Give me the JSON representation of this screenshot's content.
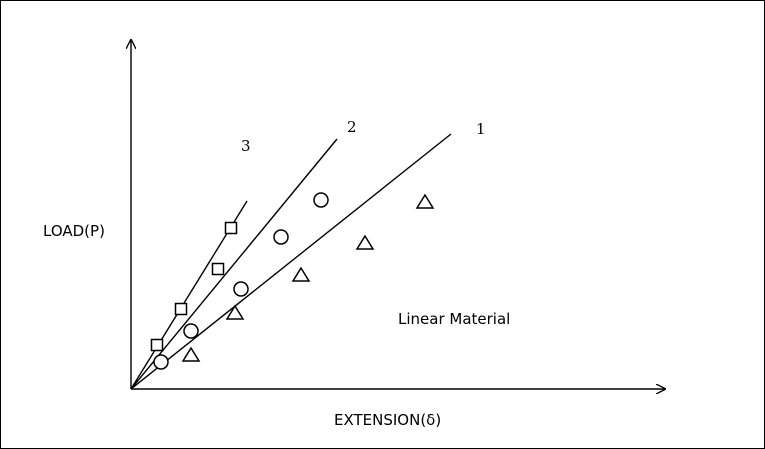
{
  "chart_data": {
    "type": "line",
    "title": "",
    "xlabel": "EXTENSION(δ)",
    "ylabel": "LOAD(P)",
    "annotation": "Linear Material",
    "xlim": [
      0,
      53
    ],
    "ylim": [
      0,
      34
    ],
    "grid": false,
    "axis_ticks": false,
    "series": [
      {
        "name": "1",
        "marker": "triangle",
        "line": [
          [
            0,
            0
          ],
          [
            32,
            25.5
          ]
        ],
        "points": [
          [
            6,
            3.4
          ],
          [
            10.4,
            7.6
          ],
          [
            17,
            11.4
          ],
          [
            23.4,
            14.6
          ],
          [
            29.4,
            18.7
          ]
        ]
      },
      {
        "name": "2",
        "marker": "circle",
        "line": [
          [
            0,
            0
          ],
          [
            20.6,
            25
          ]
        ],
        "points": [
          [
            3,
            2.7
          ],
          [
            6,
            5.8
          ],
          [
            11,
            10
          ],
          [
            15,
            15.2
          ],
          [
            19,
            18.9
          ]
        ]
      },
      {
        "name": "3",
        "marker": "square",
        "line": [
          [
            0,
            0
          ],
          [
            11.6,
            18.8
          ]
        ],
        "points": [
          [
            2.6,
            4.4
          ],
          [
            5,
            8
          ],
          [
            8.7,
            12
          ],
          [
            10,
            16.1
          ]
        ]
      }
    ]
  },
  "colors": {
    "ink": "#000000",
    "background": "#ffffff"
  }
}
